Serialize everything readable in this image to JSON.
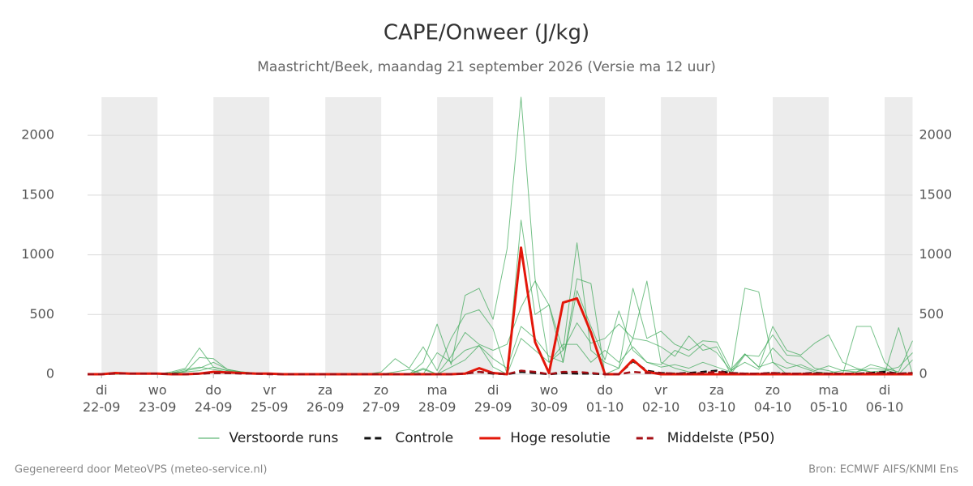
{
  "chart_data": {
    "type": "ensemble-line",
    "title": "CAPE/Onweer (J/kg)",
    "subtitle": "Maastricht/Beek, maandag 21 september 2026 (Versie ma 12 uur)",
    "footer_left": "Gegenereerd door MeteoVPS (meteo-service.nl)",
    "footer_right": "Bron: ECMWF AIFS/KNMI Ens",
    "xlim": [
      -6,
      348
    ],
    "ylim": [
      0,
      2320
    ],
    "yticks": [
      0,
      500,
      1000,
      1500,
      2000
    ],
    "grid": true,
    "right_axis": true,
    "alternate_day_shading": true,
    "legend": "bottom",
    "xticks": [
      {
        "value": 0,
        "label": "di 22-09"
      },
      {
        "value": 24,
        "label": "wo 23-09"
      },
      {
        "value": 48,
        "label": "do 24-09"
      },
      {
        "value": 72,
        "label": "vr 25-09"
      },
      {
        "value": 96,
        "label": "za 26-09"
      },
      {
        "value": 120,
        "label": "zo 27-09"
      },
      {
        "value": 144,
        "label": "ma 28-09"
      },
      {
        "value": 168,
        "label": "di 29-09"
      },
      {
        "value": 192,
        "label": "wo 30-09"
      },
      {
        "value": 216,
        "label": "do 01-10"
      },
      {
        "value": 240,
        "label": "vr 02-10"
      },
      {
        "value": 264,
        "label": "za 03-10"
      },
      {
        "value": 288,
        "label": "zo 04-10"
      },
      {
        "value": 312,
        "label": "ma 05-10"
      },
      {
        "value": 336,
        "label": "di 06-10"
      }
    ],
    "x": [
      -6,
      0,
      6,
      12,
      18,
      24,
      30,
      36,
      42,
      48,
      54,
      60,
      66,
      72,
      78,
      84,
      90,
      96,
      102,
      108,
      114,
      120,
      126,
      132,
      138,
      144,
      150,
      156,
      162,
      168,
      174,
      180,
      186,
      192,
      198,
      204,
      210,
      216,
      222,
      228,
      234,
      240,
      246,
      252,
      258,
      264,
      270,
      276,
      282,
      288,
      294,
      300,
      306,
      312,
      318,
      324,
      330,
      336,
      342,
      348
    ],
    "ensemble": {
      "name": "Verstoorde runs",
      "color": "#3aa655",
      "members": [
        [
          0,
          0,
          0,
          0,
          0,
          0,
          20,
          50,
          220,
          60,
          30,
          10,
          5,
          0,
          0,
          0,
          0,
          0,
          0,
          0,
          0,
          0,
          0,
          0,
          100,
          420,
          80,
          660,
          720,
          460,
          1050,
          2320,
          800,
          100,
          200,
          1100,
          200,
          100,
          50,
          300,
          780,
          100,
          50,
          20,
          0,
          0,
          0,
          720,
          690,
          100,
          0,
          0,
          10,
          0,
          0,
          400,
          400,
          100,
          0,
          0
        ],
        [
          0,
          0,
          0,
          0,
          0,
          0,
          10,
          20,
          140,
          130,
          40,
          20,
          10,
          5,
          0,
          0,
          0,
          0,
          0,
          0,
          0,
          20,
          130,
          50,
          230,
          30,
          300,
          500,
          540,
          380,
          0,
          1290,
          500,
          580,
          100,
          800,
          760,
          0,
          50,
          720,
          300,
          360,
          250,
          200,
          280,
          270,
          40,
          170,
          60,
          400,
          200,
          160,
          260,
          330,
          100,
          50,
          20,
          0,
          390,
          0
        ],
        [
          0,
          0,
          5,
          0,
          5,
          0,
          0,
          30,
          50,
          100,
          40,
          20,
          5,
          0,
          0,
          0,
          0,
          0,
          5,
          0,
          0,
          0,
          0,
          0,
          50,
          0,
          150,
          350,
          250,
          200,
          250,
          560,
          780,
          580,
          200,
          430,
          260,
          300,
          420,
          300,
          280,
          230,
          150,
          320,
          200,
          230,
          0,
          160,
          150,
          330,
          160,
          150,
          50,
          30,
          0,
          20,
          80,
          50,
          20,
          280
        ],
        [
          0,
          0,
          0,
          0,
          0,
          0,
          10,
          40,
          60,
          40,
          20,
          10,
          0,
          0,
          0,
          0,
          0,
          0,
          0,
          0,
          0,
          0,
          20,
          40,
          0,
          180,
          100,
          200,
          240,
          130,
          50,
          400,
          300,
          150,
          100,
          700,
          400,
          120,
          530,
          200,
          100,
          80,
          200,
          150,
          250,
          180,
          30,
          100,
          40,
          220,
          100,
          60,
          20,
          10,
          30,
          20,
          50,
          40,
          0,
          120
        ],
        [
          0,
          0,
          0,
          0,
          0,
          5,
          10,
          20,
          30,
          60,
          30,
          20,
          10,
          0,
          0,
          0,
          0,
          5,
          5,
          0,
          0,
          0,
          0,
          0,
          40,
          0,
          60,
          120,
          240,
          60,
          0,
          300,
          200,
          100,
          250,
          250,
          100,
          200,
          100,
          230,
          100,
          60,
          80,
          50,
          100,
          60,
          20,
          170,
          60,
          100,
          50,
          80,
          30,
          70,
          30,
          40,
          20,
          30,
          60,
          180
        ]
      ]
    },
    "series": [
      {
        "name": "Controle",
        "color": "#111111",
        "style": "dashed",
        "values": [
          0,
          0,
          10,
          5,
          5,
          5,
          5,
          0,
          5,
          10,
          10,
          10,
          5,
          5,
          0,
          0,
          0,
          0,
          0,
          0,
          0,
          0,
          0,
          0,
          0,
          0,
          0,
          5,
          20,
          5,
          0,
          20,
          10,
          0,
          10,
          5,
          5,
          0,
          0,
          110,
          30,
          10,
          5,
          10,
          20,
          30,
          10,
          5,
          5,
          10,
          5,
          5,
          10,
          5,
          5,
          5,
          10,
          20,
          5,
          10
        ]
      },
      {
        "name": "Hoge resolutie",
        "color": "#e3170a",
        "style": "solid",
        "values": [
          0,
          0,
          10,
          5,
          5,
          5,
          0,
          0,
          5,
          20,
          15,
          10,
          5,
          5,
          0,
          0,
          0,
          0,
          0,
          0,
          0,
          0,
          0,
          0,
          0,
          0,
          0,
          5,
          50,
          10,
          0,
          1060,
          270,
          10,
          600,
          635,
          350,
          0,
          0,
          120,
          20,
          0,
          0,
          0,
          0,
          0,
          0,
          0,
          0,
          0,
          0,
          0,
          0,
          0,
          0,
          0,
          0,
          0,
          0,
          0
        ]
      },
      {
        "name": "Middelste (P50)",
        "color": "#a50f15",
        "style": "dashed",
        "values": [
          0,
          0,
          5,
          5,
          5,
          5,
          0,
          0,
          5,
          10,
          10,
          5,
          5,
          0,
          0,
          0,
          0,
          0,
          0,
          0,
          0,
          0,
          0,
          0,
          0,
          0,
          0,
          5,
          20,
          10,
          0,
          30,
          20,
          0,
          20,
          20,
          10,
          0,
          0,
          20,
          10,
          10,
          5,
          5,
          10,
          20,
          10,
          5,
          5,
          10,
          5,
          5,
          5,
          5,
          5,
          5,
          10,
          10,
          5,
          10
        ]
      }
    ]
  }
}
